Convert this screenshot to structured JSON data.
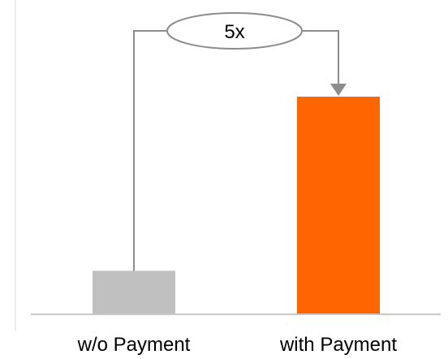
{
  "chart_data": {
    "type": "bar",
    "categories": [
      "w/o Payment",
      "with Payment"
    ],
    "values": [
      1,
      5
    ],
    "ylim": [
      0,
      6
    ],
    "grid": false,
    "bar_colors": [
      "#c0c0c0",
      "#ff6600"
    ],
    "annotation": {
      "label": "5x",
      "from_category": "w/o Payment",
      "to_category": "with Payment"
    }
  },
  "colors": {
    "axis": "#c8c8c8",
    "connector": "#8c8c8c",
    "left_rule": "#e6e6e6"
  }
}
